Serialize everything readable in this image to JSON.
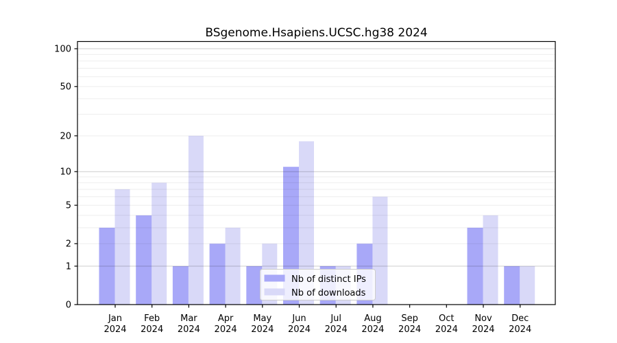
{
  "chart_data": {
    "type": "bar",
    "title": "BSgenome.Hsapiens.UCSC.hg38 2024",
    "categories": [
      "Jan",
      "Feb",
      "Mar",
      "Apr",
      "May",
      "Jun",
      "Jul",
      "Aug",
      "Sep",
      "Oct",
      "Nov",
      "Dec"
    ],
    "category_sublabel": "2024",
    "series": [
      {
        "name": "Nb of distinct IPs",
        "color": "#a8a8f8",
        "values": [
          3,
          4,
          1,
          2,
          1,
          11,
          1,
          2,
          0,
          0,
          3,
          1
        ]
      },
      {
        "name": "Nb of downloads",
        "color": "#d9d9f8",
        "values": [
          7,
          8,
          20,
          3,
          2,
          18,
          1,
          6,
          0,
          0,
          4,
          1
        ]
      }
    ],
    "yaxis": {
      "scale": "log1p",
      "ylim": [
        0,
        113
      ],
      "tick_values": [
        0,
        1,
        2,
        5,
        10,
        20,
        50,
        100
      ],
      "major_gridlines": [
        1,
        10,
        100
      ],
      "minor_gridlines": [
        2,
        3,
        4,
        5,
        6,
        7,
        8,
        9,
        20,
        30,
        40,
        50,
        60,
        70,
        80,
        90
      ]
    },
    "legend": {
      "position": "bottom-center",
      "entries": [
        "Nb of distinct IPs",
        "Nb of downloads"
      ]
    },
    "grid": true,
    "axis_color": "#000000",
    "background": "#ffffff"
  }
}
